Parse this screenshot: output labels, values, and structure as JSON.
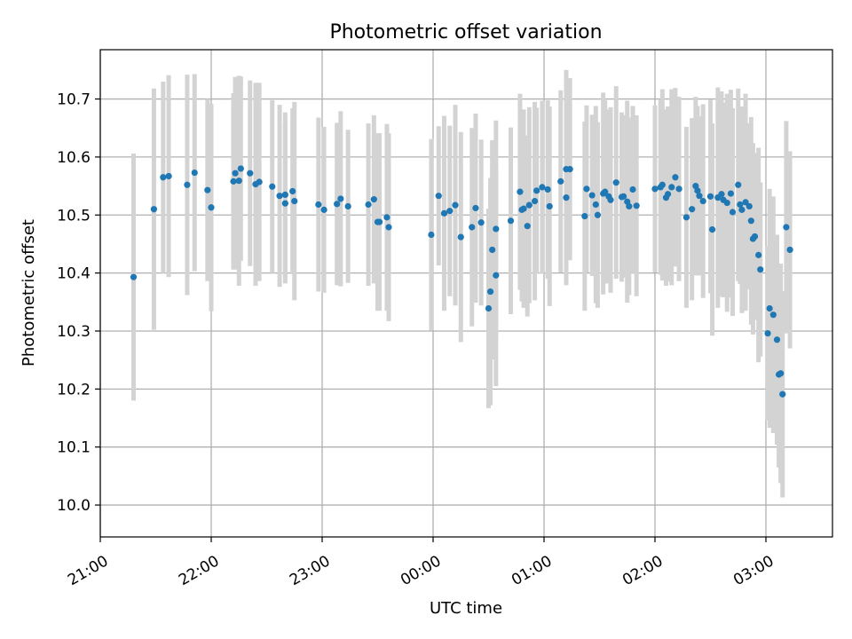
{
  "chart_data": {
    "type": "scatter",
    "title": "Photometric offset variation",
    "xlabel": "UTC time",
    "ylabel": "Photometric offset",
    "x_unit": "minutes after 21:00 UTC",
    "xlim": [
      0,
      396
    ],
    "ylim": [
      9.945,
      10.785
    ],
    "x_ticks": [
      {
        "value": 0,
        "label": "21:00"
      },
      {
        "value": 60,
        "label": "22:00"
      },
      {
        "value": 120,
        "label": "23:00"
      },
      {
        "value": 180,
        "label": "00:00"
      },
      {
        "value": 240,
        "label": "01:00"
      },
      {
        "value": 300,
        "label": "02:00"
      },
      {
        "value": 360,
        "label": "03:00"
      }
    ],
    "y_ticks": [
      {
        "value": 10.0,
        "label": "10.0"
      },
      {
        "value": 10.1,
        "label": "10.1"
      },
      {
        "value": 10.2,
        "label": "10.2"
      },
      {
        "value": 10.3,
        "label": "10.3"
      },
      {
        "value": 10.4,
        "label": "10.4"
      },
      {
        "value": 10.5,
        "label": "10.5"
      },
      {
        "value": 10.6,
        "label": "10.6"
      },
      {
        "value": 10.7,
        "label": "10.7"
      }
    ],
    "grid": true,
    "marker_color": "#1f77b4",
    "errorbar_color": "#d3d3d3",
    "series": [
      {
        "x": [
          18,
          29,
          34,
          37,
          47,
          51,
          58,
          60,
          72,
          73,
          75,
          76,
          81,
          84,
          86,
          93,
          97,
          100,
          100,
          104,
          105,
          118,
          121,
          128,
          130,
          134,
          145,
          148,
          150,
          151,
          155,
          156,
          179,
          183,
          186,
          189,
          192,
          195,
          201,
          203,
          206,
          210,
          211,
          212,
          214,
          214,
          222,
          227,
          228,
          229,
          231,
          232,
          235,
          236,
          239,
          242,
          243,
          249,
          252,
          252,
          254,
          262,
          263,
          266,
          268,
          269,
          272,
          273,
          275,
          276,
          279,
          282,
          283,
          285,
          286,
          288,
          290,
          300,
          303,
          304,
          306,
          307,
          309,
          311,
          313,
          317,
          320,
          322,
          323,
          324,
          326,
          330,
          331,
          334,
          336,
          337,
          339,
          341,
          342,
          345,
          346,
          347,
          349,
          351,
          352,
          353,
          354,
          356,
          357,
          361,
          362,
          364,
          366,
          367,
          368,
          369,
          371,
          373
        ],
        "y": [
          10.393,
          10.51,
          10.565,
          10.567,
          10.552,
          10.573,
          10.543,
          10.513,
          10.558,
          10.572,
          10.559,
          10.58,
          10.572,
          10.553,
          10.557,
          10.549,
          10.533,
          10.535,
          10.52,
          10.541,
          10.524,
          10.518,
          10.509,
          10.519,
          10.528,
          10.515,
          10.518,
          10.527,
          10.488,
          10.488,
          10.496,
          10.479,
          10.466,
          10.533,
          10.503,
          10.507,
          10.517,
          10.462,
          10.479,
          10.512,
          10.487,
          10.339,
          10.368,
          10.44,
          10.396,
          10.476,
          10.49,
          10.54,
          10.509,
          10.511,
          10.481,
          10.517,
          10.524,
          10.542,
          10.548,
          10.544,
          10.515,
          10.558,
          10.579,
          10.53,
          10.579,
          10.498,
          10.545,
          10.534,
          10.518,
          10.5,
          10.537,
          10.54,
          10.532,
          10.526,
          10.556,
          10.531,
          10.532,
          10.523,
          10.515,
          10.544,
          10.516,
          10.545,
          10.548,
          10.552,
          10.53,
          10.536,
          10.548,
          10.565,
          10.545,
          10.496,
          10.51,
          10.55,
          10.542,
          10.533,
          10.524,
          10.532,
          10.475,
          10.53,
          10.536,
          10.526,
          10.521,
          10.537,
          10.505,
          10.552,
          10.518,
          10.509,
          10.522,
          10.515,
          10.49,
          10.459,
          10.463,
          10.431,
          10.406,
          10.296,
          10.339,
          10.328,
          10.285,
          10.225,
          10.227,
          10.191,
          10.479,
          10.44
        ],
        "yerr": [
          0.213,
          0.208,
          0.165,
          0.174,
          0.19,
          0.17,
          0.157,
          0.179,
          0.152,
          0.166,
          0.181,
          0.159,
          0.16,
          0.175,
          0.171,
          0.149,
          0.157,
          0.142,
          0.138,
          0.143,
          0.171,
          0.15,
          0.143,
          0.14,
          0.151,
          0.132,
          0.14,
          0.145,
          0.153,
          0.153,
          0.161,
          0.162,
          0.165,
          0.12,
          0.168,
          0.147,
          0.173,
          0.181,
          0.171,
          0.163,
          0.143,
          0.172,
          0.196,
          0.189,
          0.191,
          0.187,
          0.161,
          0.169,
          0.158,
          0.171,
          0.156,
          0.169,
          0.171,
          0.143,
          0.149,
          0.154,
          0.172,
          0.157,
          0.171,
          0.151,
          0.157,
          0.163,
          0.144,
          0.139,
          0.17,
          0.16,
          0.174,
          0.158,
          0.15,
          0.16,
          0.166,
          0.146,
          0.14,
          0.174,
          0.153,
          0.144,
          0.156,
          0.144,
          0.151,
          0.165,
          0.152,
          0.151,
          0.169,
          0.154,
          0.159,
          0.156,
          0.157,
          0.154,
          0.146,
          0.137,
          0.167,
          0.167,
          0.183,
          0.19,
          0.177,
          0.168,
          0.188,
          0.179,
          0.179,
          0.166,
          0.137,
          0.178,
          0.187,
          0.143,
          0.179,
          0.165,
          0.144,
          0.185,
          0.15,
          0.15,
          0.206,
          0.204,
          0.181,
          0.16,
          0.189,
          0.178,
          0.183,
          0.17
        ]
      }
    ]
  }
}
